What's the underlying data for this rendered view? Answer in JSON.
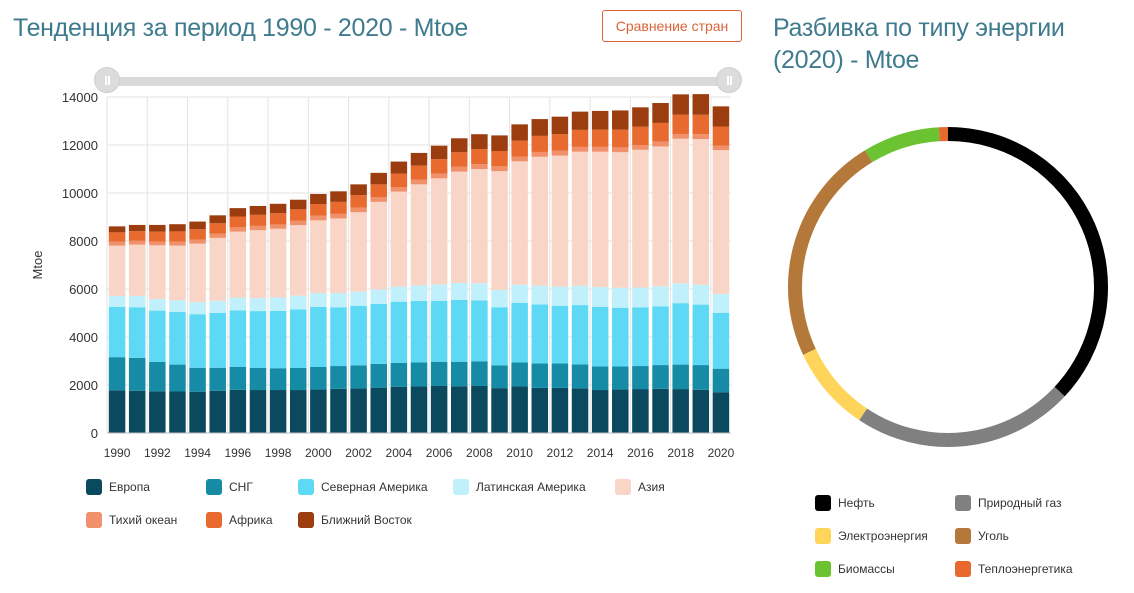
{
  "header": {
    "trend_title": "Тенденция за период 1990 - 2020 - Mtoe",
    "compare_button": "Сравнение стран",
    "breakdown_title": "Разбивка по типу энергии (2020) - Mtoe"
  },
  "chart_data": [
    {
      "type": "bar",
      "stacked": true,
      "ylabel": "Mtoe",
      "ylim": [
        0,
        14000
      ],
      "yticks": [
        0,
        2000,
        4000,
        6000,
        8000,
        10000,
        12000,
        14000
      ],
      "x_tick_labels": [
        "1990",
        "1992",
        "1994",
        "1996",
        "1998",
        "2000",
        "2002",
        "2004",
        "2006",
        "2008",
        "2010",
        "2012",
        "2014",
        "2016",
        "2018",
        "2020"
      ],
      "grid": true,
      "legend_position": "bottom",
      "categories": [
        "1990",
        "1991",
        "1992",
        "1993",
        "1994",
        "1995",
        "1996",
        "1997",
        "1998",
        "1999",
        "2000",
        "2001",
        "2002",
        "2003",
        "2004",
        "2005",
        "2006",
        "2007",
        "2008",
        "2009",
        "2010",
        "2011",
        "2012",
        "2013",
        "2014",
        "2015",
        "2016",
        "2017",
        "2018",
        "2019",
        "2020"
      ],
      "series": [
        {
          "name": "Европа",
          "color": "#0b4a5e",
          "values": [
            1780,
            1760,
            1740,
            1730,
            1720,
            1760,
            1800,
            1790,
            1790,
            1790,
            1810,
            1840,
            1860,
            1890,
            1920,
            1940,
            1960,
            1950,
            1960,
            1870,
            1940,
            1880,
            1880,
            1860,
            1790,
            1810,
            1830,
            1840,
            1830,
            1800,
            1700
          ]
        },
        {
          "name": "СНГ",
          "color": "#168ba5",
          "values": [
            1380,
            1370,
            1220,
            1120,
            1000,
            960,
            960,
            920,
            910,
            920,
            940,
            950,
            960,
            990,
            1000,
            1000,
            1010,
            1020,
            1030,
            950,
            1000,
            1020,
            1020,
            1000,
            980,
            960,
            960,
            990,
            1020,
            1030,
            980
          ]
        },
        {
          "name": "Северная Америка",
          "color": "#5dd9f5",
          "values": [
            2090,
            2110,
            2140,
            2190,
            2230,
            2280,
            2350,
            2370,
            2390,
            2440,
            2500,
            2450,
            2480,
            2500,
            2550,
            2560,
            2540,
            2580,
            2530,
            2420,
            2480,
            2460,
            2400,
            2470,
            2490,
            2450,
            2440,
            2450,
            2560,
            2520,
            2330
          ]
        },
        {
          "name": "Латинская Америка",
          "color": "#bff0fb",
          "values": [
            460,
            470,
            480,
            490,
            500,
            510,
            530,
            540,
            560,
            570,
            580,
            590,
            590,
            600,
            630,
            650,
            680,
            700,
            720,
            720,
            760,
            780,
            800,
            810,
            820,
            830,
            830,
            830,
            830,
            830,
            780
          ]
        },
        {
          "name": "Азия",
          "color": "#f8d5c6",
          "values": [
            2100,
            2140,
            2240,
            2280,
            2440,
            2620,
            2750,
            2830,
            2860,
            2940,
            3030,
            3110,
            3310,
            3650,
            3960,
            4210,
            4420,
            4640,
            4760,
            4950,
            5140,
            5370,
            5460,
            5580,
            5640,
            5650,
            5740,
            5830,
            6020,
            6070,
            6000
          ]
        },
        {
          "name": "Тихий океан",
          "color": "#f0916b",
          "values": [
            160,
            160,
            160,
            170,
            170,
            170,
            180,
            180,
            180,
            180,
            190,
            190,
            190,
            190,
            190,
            200,
            200,
            200,
            200,
            200,
            200,
            200,
            200,
            200,
            200,
            200,
            200,
            200,
            200,
            200,
            190
          ]
        },
        {
          "name": "Африка",
          "color": "#e86a2e",
          "values": [
            390,
            400,
            410,
            420,
            430,
            440,
            450,
            460,
            470,
            480,
            490,
            500,
            520,
            540,
            560,
            580,
            600,
            610,
            630,
            640,
            660,
            670,
            690,
            710,
            720,
            740,
            760,
            780,
            800,
            810,
            790
          ]
        },
        {
          "name": "Ближний Восток",
          "color": "#9c3d0f",
          "values": [
            250,
            260,
            280,
            300,
            320,
            330,
            350,
            370,
            390,
            400,
            420,
            440,
            450,
            480,
            500,
            530,
            560,
            580,
            620,
            650,
            680,
            700,
            730,
            760,
            780,
            800,
            810,
            830,
            850,
            860,
            840
          ]
        }
      ]
    },
    {
      "type": "pie",
      "donut": true,
      "legend_position": "bottom",
      "categories": [
        "Нефть",
        "Природный газ",
        "Электроэнергия",
        "Уголь",
        "Биомассы",
        "Теплоэнергетика"
      ],
      "values": [
        40.5,
        24.5,
        9.5,
        25.5,
        8.5,
        1.0
      ],
      "colors": [
        "#000000",
        "#808080",
        "#ffd45a",
        "#b4793a",
        "#6cc332",
        "#e8692e"
      ]
    }
  ]
}
